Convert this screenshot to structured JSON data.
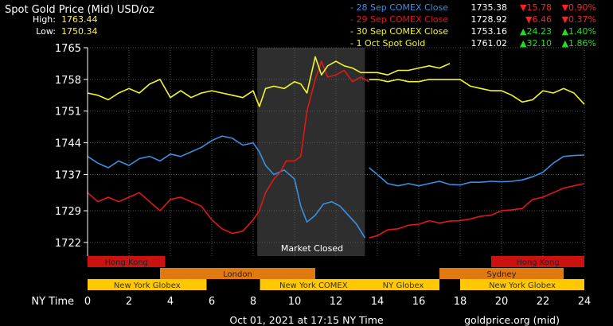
{
  "header": {
    "title": "Spot Gold Price (Mid) USD/oz",
    "high_label": "High:",
    "high_value": "1763.44",
    "low_label": "Low:",
    "low_value": "1750.34"
  },
  "legend": [
    {
      "name": "- 28 Sep COMEX Close",
      "price": "1735.38",
      "change": "▼15.78",
      "pct": "▼0.90%",
      "color": "#3a8fe0",
      "up": false
    },
    {
      "name": "- 29 Sep COMEX Close",
      "price": "1728.92",
      "change": "▼6.46",
      "pct": "▼0.37%",
      "color": "#e01818",
      "up": false
    },
    {
      "name": "- 30 Sep COMEX Close",
      "price": "1753.16",
      "change": "▲24.23",
      "pct": "▲1.40%",
      "color": "#f5f52a",
      "up": true
    },
    {
      "name": "- 1 Oct Spot Gold",
      "price": "1761.02",
      "change": "▲32.10",
      "pct": "▲1.86%",
      "color": "#f5f52a",
      "up": true
    }
  ],
  "colors": {
    "down": "#ff2020",
    "up": "#22dd22",
    "grid": "#555555",
    "closed_band": "#2e2e2e",
    "hk": "#cc1111",
    "london": "#e07a10",
    "sydney": "#e07a10",
    "ny": "#ffc800",
    "label_gold": "#ffee55"
  },
  "sessions": [
    {
      "row": 0,
      "label": "Hong Kong",
      "start": 0,
      "end": 3.75,
      "color": "#cc1111"
    },
    {
      "row": 0,
      "label": "Hong Kong",
      "start": 19.5,
      "end": 24,
      "color": "#cc1111"
    },
    {
      "row": 1,
      "label": "London",
      "start": 3.5,
      "end": 11,
      "color": "#e07a10"
    },
    {
      "row": 1,
      "label": "Sydney",
      "start": 17,
      "end": 23,
      "color": "#e07a10"
    },
    {
      "row": 2,
      "label": "New York Globex",
      "start": 0,
      "end": 5.75,
      "color": "#ffc800"
    },
    {
      "row": 2,
      "label": "New York COMEX",
      "start": 8.33,
      "end": 13.5,
      "color": "#ffc800"
    },
    {
      "row": 2,
      "label": "NY Globex",
      "start": 13.5,
      "end": 17,
      "color": "#ffc800"
    },
    {
      "row": 2,
      "label": "New York Globex",
      "start": 18,
      "end": 24,
      "color": "#ffc800"
    }
  ],
  "x_axis_label": "NY Time",
  "footer_left": "Oct 01, 2021 at 17:15 NY Time",
  "footer_right": "goldprice.org (mid)",
  "market_closed_label": "Market Closed",
  "chart_data": {
    "type": "line",
    "title": "Spot Gold Price (Mid) USD/oz",
    "xlabel": "NY Time",
    "x_ticks": [
      0,
      2,
      4,
      6,
      8,
      10,
      12,
      14,
      16,
      18,
      20,
      22,
      24
    ],
    "y_ticks": [
      1722,
      1729,
      1737,
      1744,
      1751,
      1758,
      1765
    ],
    "xlim": [
      0,
      24
    ],
    "ylim": [
      1719,
      1765
    ],
    "grid": true,
    "market_closed": [
      8.2,
      13.4
    ],
    "series": [
      {
        "name": "28 Sep COMEX Close",
        "color": "#3a8fe0",
        "segments": [
          [
            [
              0,
              1741
            ],
            [
              0.5,
              1739.5
            ],
            [
              1,
              1738.5
            ],
            [
              1.5,
              1740
            ],
            [
              2,
              1739
            ],
            [
              2.5,
              1740.5
            ],
            [
              3,
              1741
            ],
            [
              3.5,
              1740
            ],
            [
              4,
              1741.5
            ],
            [
              4.5,
              1741
            ],
            [
              5,
              1742
            ],
            [
              5.5,
              1743
            ],
            [
              6,
              1744.5
            ],
            [
              6.5,
              1745.5
            ],
            [
              7,
              1745
            ],
            [
              7.5,
              1743.5
            ],
            [
              8,
              1744
            ],
            [
              8.3,
              1742
            ],
            [
              8.6,
              1739
            ],
            [
              9,
              1737
            ],
            [
              9.5,
              1738
            ],
            [
              10,
              1736
            ],
            [
              10.3,
              1730
            ],
            [
              10.6,
              1726.5
            ],
            [
              11,
              1728
            ],
            [
              11.4,
              1730.5
            ],
            [
              11.8,
              1731
            ],
            [
              12.2,
              1730
            ],
            [
              12.6,
              1728
            ],
            [
              13,
              1726
            ],
            [
              13.4,
              1723
            ]
          ],
          [
            [
              13.6,
              1738.5
            ],
            [
              14,
              1737
            ],
            [
              14.5,
              1735
            ],
            [
              15,
              1734.5
            ],
            [
              15.5,
              1735
            ],
            [
              16,
              1734.5
            ],
            [
              16.5,
              1735
            ],
            [
              17,
              1735.5
            ],
            [
              17.5,
              1734.8
            ],
            [
              18,
              1734.7
            ],
            [
              18.5,
              1735.3
            ],
            [
              19,
              1735.3
            ],
            [
              19.5,
              1735.5
            ],
            [
              20,
              1735.4
            ],
            [
              20.5,
              1735.5
            ],
            [
              21,
              1735.8
            ],
            [
              21.5,
              1736.5
            ],
            [
              22,
              1737.5
            ],
            [
              22.5,
              1739.5
            ],
            [
              23,
              1741
            ],
            [
              23.5,
              1741.2
            ],
            [
              24,
              1741.3
            ]
          ]
        ]
      },
      {
        "name": "29 Sep COMEX Close",
        "color": "#e01818",
        "segments": [
          [
            [
              0,
              1733
            ],
            [
              0.5,
              1731
            ],
            [
              1,
              1732
            ],
            [
              1.5,
              1731
            ],
            [
              2,
              1732
            ],
            [
              2.5,
              1733
            ],
            [
              3,
              1731
            ],
            [
              3.5,
              1729
            ],
            [
              4,
              1731.5
            ],
            [
              4.5,
              1732
            ],
            [
              5,
              1731
            ],
            [
              5.5,
              1730
            ],
            [
              6,
              1727
            ],
            [
              6.5,
              1725
            ],
            [
              7,
              1724
            ],
            [
              7.5,
              1724.5
            ],
            [
              8,
              1727
            ],
            [
              8.3,
              1729
            ],
            [
              8.6,
              1733
            ],
            [
              9,
              1736
            ],
            [
              9.3,
              1737.5
            ],
            [
              9.6,
              1740
            ],
            [
              10,
              1740
            ],
            [
              10.3,
              1741
            ],
            [
              10.6,
              1751
            ],
            [
              11,
              1758
            ],
            [
              11.3,
              1762
            ],
            [
              11.6,
              1758.5
            ],
            [
              12,
              1759
            ],
            [
              12.4,
              1760
            ],
            [
              12.8,
              1757.5
            ],
            [
              13.2,
              1758.5
            ],
            [
              13.6,
              1757.5
            ]
          ],
          [
            [
              13.6,
              1723
            ],
            [
              14,
              1723.5
            ],
            [
              14.5,
              1724.8
            ],
            [
              15,
              1725
            ],
            [
              15.5,
              1725.8
            ],
            [
              16,
              1726
            ],
            [
              16.5,
              1726.8
            ],
            [
              17,
              1726.3
            ],
            [
              17.5,
              1726.7
            ],
            [
              18,
              1726.8
            ],
            [
              18.5,
              1727.2
            ],
            [
              19,
              1727.8
            ],
            [
              19.5,
              1728
            ],
            [
              20,
              1729
            ],
            [
              20.5,
              1729.2
            ],
            [
              21,
              1729.5
            ],
            [
              21.5,
              1731.5
            ],
            [
              22,
              1732
            ],
            [
              22.5,
              1733
            ],
            [
              23,
              1734
            ],
            [
              23.5,
              1734.5
            ],
            [
              24,
              1735
            ]
          ]
        ]
      },
      {
        "name": "30 Sep COMEX Close",
        "color": "#f5f52a",
        "segments": [
          [
            [
              0,
              1755
            ],
            [
              0.5,
              1754.5
            ],
            [
              1,
              1753.5
            ],
            [
              1.5,
              1755
            ],
            [
              2,
              1756
            ],
            [
              2.5,
              1755
            ],
            [
              3,
              1757
            ],
            [
              3.5,
              1758
            ],
            [
              4,
              1754
            ],
            [
              4.5,
              1755.5
            ],
            [
              5,
              1754
            ],
            [
              5.5,
              1755
            ],
            [
              6,
              1755.5
            ],
            [
              6.5,
              1755
            ],
            [
              7,
              1754.5
            ],
            [
              7.5,
              1754
            ],
            [
              8,
              1755.5
            ],
            [
              8.3,
              1752
            ],
            [
              8.6,
              1756
            ],
            [
              9,
              1756.5
            ],
            [
              9.5,
              1756
            ],
            [
              10,
              1757.5
            ],
            [
              10.3,
              1757
            ],
            [
              10.6,
              1755
            ],
            [
              11,
              1763
            ],
            [
              11.3,
              1759
            ],
            [
              11.6,
              1761
            ],
            [
              12,
              1762
            ],
            [
              12.4,
              1761
            ],
            [
              12.8,
              1760.5
            ],
            [
              13.2,
              1759.5
            ],
            [
              13.6,
              1759.5
            ],
            [
              14,
              1759.5
            ],
            [
              14.5,
              1759
            ],
            [
              15,
              1760
            ],
            [
              15.5,
              1760
            ],
            [
              16,
              1760.5
            ],
            [
              16.5,
              1761
            ],
            [
              17,
              1760.5
            ],
            [
              17.5,
              1761.5
            ]
          ]
        ]
      },
      {
        "name": "1 Oct Spot Gold",
        "color": "#f5f52a",
        "segments": [
          [
            [
              13.6,
              1758
            ],
            [
              14,
              1758
            ],
            [
              14.5,
              1757.5
            ],
            [
              15,
              1758
            ],
            [
              15.5,
              1757.5
            ],
            [
              16,
              1757.5
            ],
            [
              16.5,
              1758
            ],
            [
              17,
              1758
            ],
            [
              17.5,
              1758
            ],
            [
              18,
              1758
            ],
            [
              18.5,
              1756.5
            ],
            [
              19,
              1756
            ],
            [
              19.5,
              1755.5
            ],
            [
              20,
              1755.5
            ],
            [
              20.5,
              1754.5
            ],
            [
              21,
              1753
            ],
            [
              21.5,
              1753.5
            ],
            [
              22,
              1755.5
            ],
            [
              22.5,
              1755
            ],
            [
              23,
              1756
            ],
            [
              23.5,
              1755
            ],
            [
              24,
              1752.5
            ]
          ]
        ]
      }
    ]
  }
}
